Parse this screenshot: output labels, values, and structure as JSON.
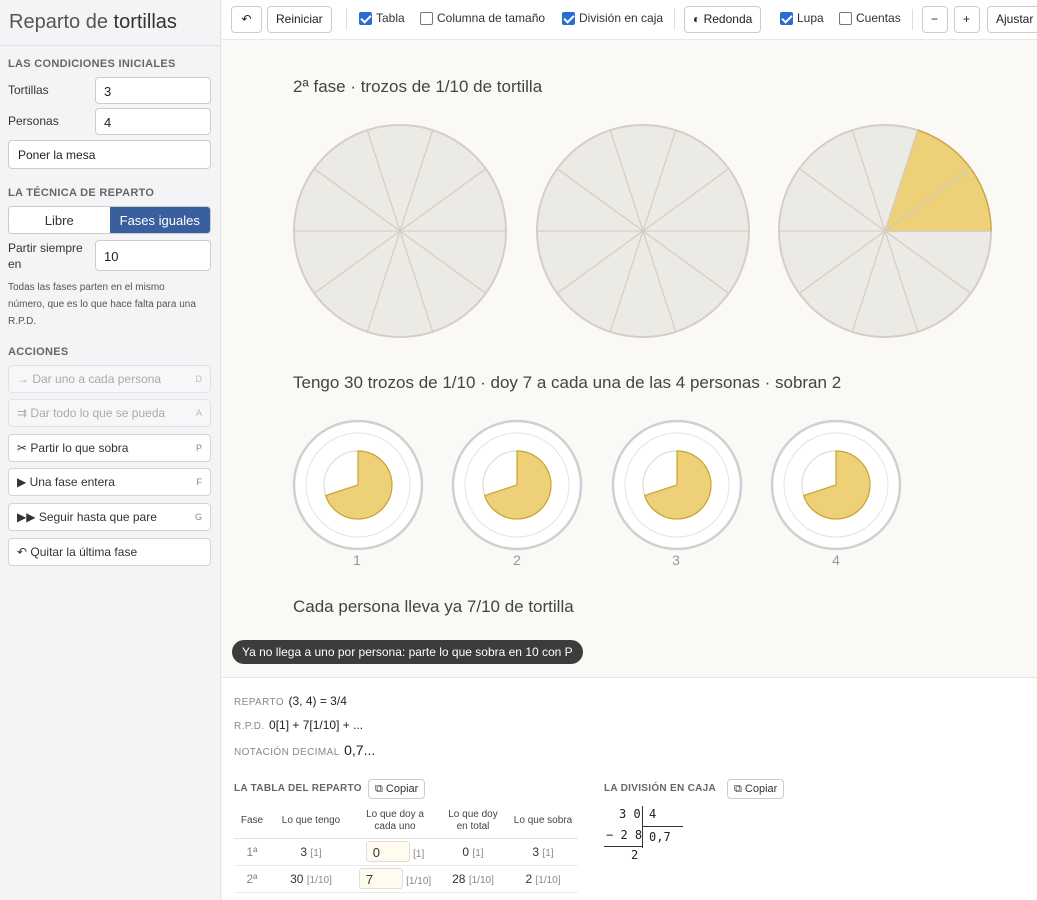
{
  "app": {
    "title_prefix": "Reparto de",
    "title_bold": "tortillas"
  },
  "sidebar": {
    "initial_conditions": {
      "section": "LAS CONDICIONES INICIALES",
      "tortillas_label": "Tortillas",
      "tortillas_value": "3",
      "people_label": "Personas",
      "people_value": "4",
      "set_table_button": "Poner la mesa"
    },
    "technique": {
      "section": "LA TÉCNICA DE REPARTO",
      "free_label": "Libre",
      "equal_label": "Fases iguales",
      "selected": "Fases iguales",
      "split_label_1": "Partir siempre",
      "split_label_2": "en",
      "split_value": "10",
      "note": "Todas las fases parten en el mismo número, que es lo que hace falta para una R.P.D."
    },
    "actions": {
      "section": "ACCIONES",
      "items": [
        {
          "icon": "→",
          "label": "Dar uno a cada persona",
          "key": "D",
          "enabled": false
        },
        {
          "icon": "⇉",
          "label": "Dar todo lo que se pueda",
          "key": "A",
          "enabled": false
        },
        {
          "icon": "✂",
          "label": "Partir lo que sobra",
          "key": "P",
          "enabled": true
        },
        {
          "icon": "▶",
          "label": "Una fase entera",
          "key": "F",
          "enabled": true
        },
        {
          "icon": "▶▶",
          "label": "Seguir hasta que pare",
          "key": "G",
          "enabled": true
        },
        {
          "icon": "↶",
          "label": "Quitar la última fase",
          "key": "",
          "enabled": true
        }
      ]
    }
  },
  "toolbar": {
    "undo_icon": "↶",
    "reset": "Reiniciar",
    "tabla": {
      "label": "Tabla",
      "checked": true
    },
    "columna": {
      "label": "Columna de tamaño",
      "checked": false
    },
    "division": {
      "label": "División en caja",
      "checked": true
    },
    "redonda": "◐ Redonda",
    "lupa": {
      "label": "Lupa",
      "checked": true
    },
    "cuentas": {
      "label": "Cuentas",
      "checked": false
    },
    "minus": "−",
    "plus": "+",
    "fit": "Ajustar"
  },
  "stage": {
    "phase_heading": "2ª fase · trozos de 1/10 de tortilla",
    "tortillas": [
      {
        "slices": 10,
        "remaining": 0
      },
      {
        "slices": 10,
        "remaining": 0
      },
      {
        "slices": 10,
        "remaining": 2
      }
    ],
    "summary": "Tengo 30 trozos de 1/10 · doy 7 a cada una de las 4 personas · sobran 2",
    "people": [
      {
        "number": "1",
        "share": 0.7
      },
      {
        "number": "2",
        "share": 0.7
      },
      {
        "number": "3",
        "share": 0.7
      },
      {
        "number": "4",
        "share": 0.7
      }
    ],
    "total": "Cada persona lleva ya 7/10 de tortilla",
    "toast": "Ya no llega a uno por persona: parte lo que sobra en 10 con P",
    "colors": {
      "pie_base": "#eceae4",
      "pie_line": "#d2d0c6",
      "fill": "#edd077",
      "fill_line": "#c9a430"
    }
  },
  "bottom": {
    "reparto_label": "REPARTO",
    "reparto_value": "(3, 4) = 3/4",
    "rpd_label": "R.P.D.",
    "rpd_value": "0[1] + 7[1/10] + ...",
    "decimal_label": "NOTACIÓN DECIMAL",
    "decimal_value": "0,7...",
    "table": {
      "title": "LA TABLA DEL REPARTO",
      "copy": "Copiar",
      "headers": [
        "Fase",
        "Lo que tengo",
        "Lo que doy a cada uno",
        "Lo que doy en total",
        "Lo que sobra"
      ],
      "rows": [
        {
          "phase": "1ª",
          "have": "3",
          "have_u": "[1]",
          "give": "0",
          "give_u": "[1]",
          "total": "0",
          "total_u": "[1]",
          "left": "3",
          "left_u": "[1]"
        },
        {
          "phase": "2ª",
          "have": "30",
          "have_u": "[1/10]",
          "give": "7",
          "give_u": "[1/10]",
          "total": "28",
          "total_u": "[1/10]",
          "left": "2",
          "left_u": "[1/10]"
        }
      ]
    },
    "division": {
      "title": "LA DIVISIÓN EN CAJA",
      "copy": "Copiar",
      "dividend": "3 0",
      "divisor": "4",
      "subtract": "− 2 8",
      "quotient": "0,7",
      "remainder": "2"
    }
  }
}
